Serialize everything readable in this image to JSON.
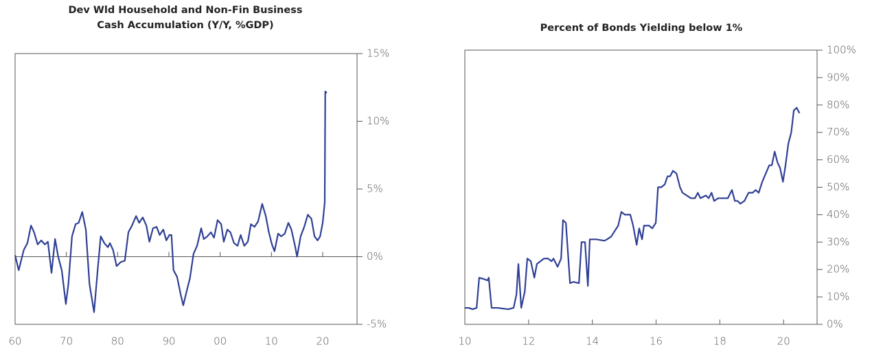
{
  "chart_data": [
    {
      "type": "line",
      "title": [
        "Dev Wld Household and Non-Fin Business",
        "Cash Accumulation (Y/Y, %GDP)"
      ],
      "color": "#2e3f95",
      "x": [
        1960,
        1960.7,
        1961.7,
        1962.4,
        1963.1,
        1963.7,
        1964.4,
        1965.1,
        1965.8,
        1966.4,
        1967.1,
        1967.8,
        1968.4,
        1969.1,
        1969.9,
        1970.4,
        1971.1,
        1971.8,
        1972.4,
        1973.1,
        1973.8,
        1974.5,
        1975.4,
        1976.1,
        1976.7,
        1977.4,
        1978.1,
        1978.5,
        1979.1,
        1979.8,
        1980.6,
        1981.4,
        1982.1,
        1982.8,
        1983.6,
        1984.2,
        1984.9,
        1985.6,
        1986.2,
        1986.9,
        1987.6,
        1988.2,
        1988.9,
        1989.5,
        1990.1,
        1990.5,
        1990.9,
        1991.6,
        1992.3,
        1992.8,
        1993.5,
        1994.1,
        1994.8,
        1995.5,
        1996.3,
        1996.8,
        1997.5,
        1998.2,
        1998.8,
        1999.5,
        2000.2,
        2000.7,
        2001.4,
        2002.0,
        2002.7,
        2003.4,
        2004.0,
        2004.7,
        2005.4,
        2006.0,
        2006.7,
        2007.4,
        2008.2,
        2008.9,
        2009.5,
        2010.1,
        2010.6,
        2011.3,
        2011.9,
        2012.6,
        2013.3,
        2013.9,
        2014.6,
        2015.0,
        2015.7,
        2016.4,
        2017.1,
        2017.8,
        2018.4,
        2019.0,
        2019.5,
        2020.0,
        2020.4,
        2020.5,
        2020.8
      ],
      "values": [
        0.1,
        -1.0,
        0.5,
        1.0,
        2.3,
        1.8,
        0.9,
        1.2,
        0.9,
        1.1,
        -1.2,
        1.3,
        0.0,
        -1.0,
        -3.5,
        -2.0,
        1.5,
        2.4,
        2.5,
        3.3,
        2.0,
        -2.0,
        -4.1,
        -1.0,
        1.5,
        1.0,
        0.7,
        1.0,
        0.5,
        -0.7,
        -0.4,
        -0.3,
        1.8,
        2.3,
        3.0,
        2.5,
        2.9,
        2.3,
        1.1,
        2.1,
        2.2,
        1.6,
        2.0,
        1.2,
        1.6,
        1.6,
        -1.0,
        -1.5,
        -2.8,
        -3.6,
        -2.5,
        -1.6,
        0.2,
        0.8,
        2.1,
        1.3,
        1.5,
        1.8,
        1.4,
        2.7,
        2.4,
        1.1,
        2.0,
        1.8,
        1.0,
        0.8,
        1.6,
        0.8,
        1.1,
        2.4,
        2.2,
        2.6,
        3.9,
        3.0,
        1.8,
        0.9,
        0.4,
        1.7,
        1.5,
        1.7,
        2.5,
        2.0,
        0.8,
        0.0,
        1.5,
        2.2,
        3.1,
        2.8,
        1.5,
        1.2,
        1.5,
        2.5,
        4.0,
        12.2,
        12.1
      ],
      "xlim": [
        1960,
        2026.7
      ],
      "xticks": [
        {
          "value": 1960,
          "label": "60"
        },
        {
          "value": 1970,
          "label": "70"
        },
        {
          "value": 1980,
          "label": "80"
        },
        {
          "value": 1990,
          "label": "90"
        },
        {
          "value": 2000,
          "label": "00"
        },
        {
          "value": 2010,
          "label": "10"
        },
        {
          "value": 2020,
          "label": "20"
        }
      ],
      "ylim": [
        -5,
        15
      ],
      "yticks": [
        {
          "value": -5,
          "label": "-5%"
        },
        {
          "value": 0,
          "label": "0%"
        },
        {
          "value": 5,
          "label": "5%"
        },
        {
          "value": 10,
          "label": "10%"
        },
        {
          "value": 15,
          "label": "15%"
        }
      ]
    },
    {
      "type": "line",
      "title": [
        "Percent of Bonds Yielding below 1%"
      ],
      "color": "#2e3f95",
      "x": [
        2010.0,
        2010.13,
        2010.24,
        2010.37,
        2010.45,
        2010.6,
        2010.71,
        2010.75,
        2010.84,
        2011.03,
        2011.36,
        2011.53,
        2011.62,
        2011.68,
        2011.77,
        2011.88,
        2011.96,
        2012.07,
        2012.18,
        2012.26,
        2012.37,
        2012.48,
        2012.61,
        2012.72,
        2012.78,
        2012.91,
        2013.02,
        2013.08,
        2013.17,
        2013.3,
        2013.41,
        2013.58,
        2013.66,
        2013.77,
        2013.86,
        2013.92,
        2014.12,
        2014.38,
        2014.46,
        2014.59,
        2014.7,
        2014.81,
        2014.91,
        2015.02,
        2015.19,
        2015.28,
        2015.39,
        2015.47,
        2015.56,
        2015.62,
        2015.78,
        2015.88,
        2015.99,
        2016.06,
        2016.16,
        2016.27,
        2016.36,
        2016.44,
        2016.53,
        2016.64,
        2016.75,
        2016.83,
        2016.96,
        2017.09,
        2017.22,
        2017.31,
        2017.39,
        2017.56,
        2017.65,
        2017.74,
        2017.82,
        2017.95,
        2018.08,
        2018.25,
        2018.38,
        2018.47,
        2018.56,
        2018.64,
        2018.77,
        2018.9,
        2019.03,
        2019.12,
        2019.22,
        2019.33,
        2019.44,
        2019.55,
        2019.63,
        2019.72,
        2019.81,
        2019.89,
        2019.98,
        2020.06,
        2020.15,
        2020.24,
        2020.32,
        2020.41,
        2020.5
      ],
      "values": [
        6,
        6,
        5.5,
        6,
        17,
        16.5,
        16,
        17,
        6,
        6,
        5.5,
        6,
        11,
        22,
        6,
        12,
        24,
        23,
        17,
        22,
        23,
        24,
        24,
        23,
        24,
        21,
        24,
        38,
        37,
        15,
        15.5,
        15,
        30,
        30,
        14,
        31,
        31,
        30.5,
        31,
        32,
        34,
        36,
        41,
        40,
        40,
        36,
        29,
        35,
        31,
        36,
        36,
        35,
        37,
        50,
        50,
        51,
        54,
        54,
        56,
        55,
        50,
        48,
        47,
        46,
        46,
        48,
        46,
        47,
        46,
        48,
        45,
        46,
        46,
        46,
        49,
        45,
        45,
        44,
        45,
        48,
        48,
        49,
        48,
        52,
        55,
        58,
        58,
        63,
        59,
        57,
        52,
        58,
        66,
        70,
        78,
        79,
        77
      ],
      "xlim": [
        2010,
        2021.05
      ],
      "xticks": [
        {
          "value": 2010,
          "label": "10"
        },
        {
          "value": 2012,
          "label": "12"
        },
        {
          "value": 2014,
          "label": "14"
        },
        {
          "value": 2016,
          "label": "16"
        },
        {
          "value": 2018,
          "label": "18"
        },
        {
          "value": 2020,
          "label": "20"
        }
      ],
      "ylim": [
        0,
        100
      ],
      "yticks": [
        {
          "value": 0,
          "label": "0%"
        },
        {
          "value": 10,
          "label": "10%"
        },
        {
          "value": 20,
          "label": "20%"
        },
        {
          "value": 30,
          "label": "30%"
        },
        {
          "value": 40,
          "label": "40%"
        },
        {
          "value": 50,
          "label": "50%"
        },
        {
          "value": 60,
          "label": "60%"
        },
        {
          "value": 70,
          "label": "70%"
        },
        {
          "value": 80,
          "label": "80%"
        },
        {
          "value": 90,
          "label": "90%"
        },
        {
          "value": 100,
          "label": "100%"
        }
      ]
    }
  ]
}
